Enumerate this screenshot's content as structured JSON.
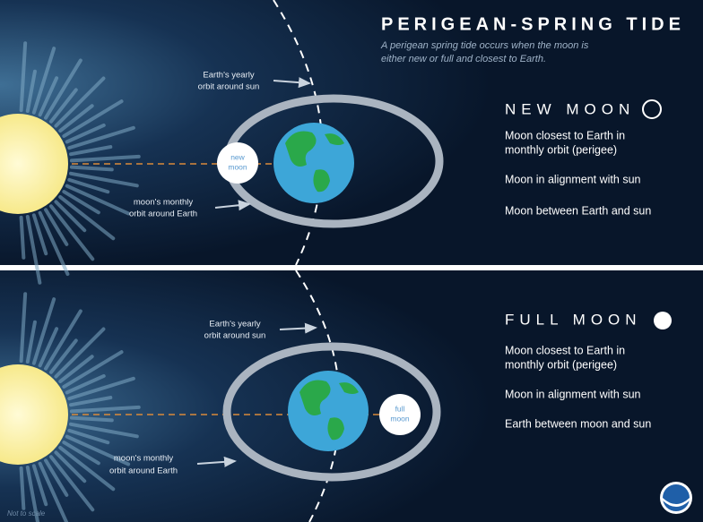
{
  "title": "PERIGEAN-SPRING TIDE",
  "subtitle": [
    "A perigean spring tide occurs when the moon is",
    "either new or full and closest to Earth."
  ],
  "panels": [
    {
      "heading": "NEW MOON",
      "moon_label": [
        "new",
        "moon"
      ],
      "earth_orbit_label": [
        "Earth's yearly",
        "orbit around sun"
      ],
      "moon_orbit_label": [
        "moon's monthly",
        "orbit around Earth"
      ],
      "facts": [
        [
          "Moon closest to Earth in",
          "monthly orbit (perigee)"
        ],
        [
          "Moon in alignment with sun"
        ],
        [
          "Moon between Earth and sun"
        ]
      ]
    },
    {
      "heading": "FULL MOON",
      "moon_label": [
        "full",
        "moon"
      ],
      "earth_orbit_label": [
        "Earth's yearly",
        "orbit around sun"
      ],
      "moon_orbit_label": [
        "moon's monthly",
        "orbit around Earth"
      ],
      "facts": [
        [
          "Moon closest to Earth in",
          "monthly orbit (perigee)"
        ],
        [
          "Moon in alignment with sun"
        ],
        [
          "Earth between moon and sun"
        ]
      ]
    }
  ],
  "footnote": "Not to scale"
}
